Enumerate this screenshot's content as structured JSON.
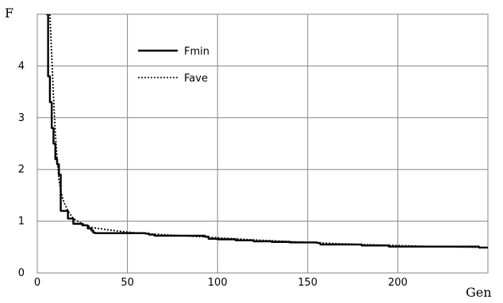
{
  "chart_data": {
    "type": "line",
    "title": "",
    "xlabel": "Gen",
    "ylabel": "F",
    "xlim": [
      0,
      250
    ],
    "ylim": [
      0,
      5
    ],
    "x_ticks": [
      0,
      50,
      100,
      150,
      200
    ],
    "y_ticks": [
      0,
      1,
      2,
      3,
      4
    ],
    "grid": true,
    "legend_position": "top-left",
    "series": [
      {
        "name": "Fmin",
        "line_style": "solid",
        "color": "#000000",
        "x": [
          5,
          6,
          7,
          8,
          9,
          10,
          11,
          12,
          13,
          16,
          17,
          20,
          25,
          28,
          30,
          31,
          32,
          60,
          62,
          65,
          93,
          95,
          100,
          110,
          120,
          130,
          140,
          155,
          157,
          160,
          180,
          190,
          195,
          245,
          250
        ],
        "y": [
          5.0,
          3.8,
          3.3,
          2.8,
          2.5,
          2.2,
          2.1,
          1.9,
          1.2,
          1.2,
          1.05,
          0.95,
          0.92,
          0.86,
          0.82,
          0.78,
          0.77,
          0.76,
          0.74,
          0.72,
          0.7,
          0.66,
          0.65,
          0.63,
          0.61,
          0.6,
          0.59,
          0.58,
          0.55,
          0.55,
          0.53,
          0.53,
          0.51,
          0.49,
          0.48
        ]
      },
      {
        "name": "Fave",
        "line_style": "dotted",
        "color": "#000000",
        "x": [
          7,
          8,
          9,
          10,
          11,
          12,
          13,
          14,
          15,
          17,
          20,
          25,
          30,
          40,
          50,
          60,
          70,
          80,
          100,
          120,
          150,
          180,
          200,
          220,
          250
        ],
        "y": [
          5.0,
          4.2,
          3.4,
          2.7,
          2.2,
          1.8,
          1.6,
          1.45,
          1.35,
          1.2,
          1.05,
          0.95,
          0.88,
          0.83,
          0.79,
          0.76,
          0.74,
          0.72,
          0.68,
          0.64,
          0.59,
          0.55,
          0.53,
          0.51,
          0.49
        ]
      }
    ]
  }
}
